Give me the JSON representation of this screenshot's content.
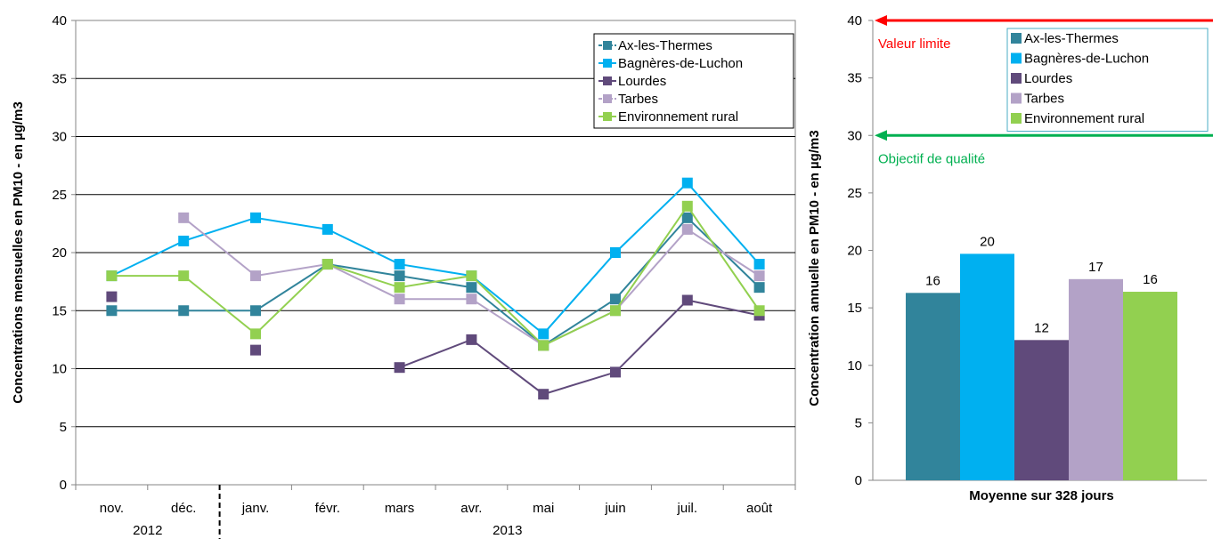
{
  "colors": {
    "ax": "#31849B",
    "luchon": "#00B0F0",
    "lourdes": "#604A7B",
    "tarbes": "#B3A2C7",
    "rural": "#92D050",
    "limit": "#FF0000",
    "objective": "#00B050",
    "legend_border": "#4BACC6"
  },
  "chart_data": [
    {
      "type": "line",
      "title": "",
      "xlabel": "",
      "ylabel": "Concentrations mensuelles en PM10 - en µg/m3",
      "ylim": [
        0,
        40
      ],
      "yticks": [
        0,
        5,
        10,
        15,
        20,
        25,
        30,
        35,
        40
      ],
      "grid": true,
      "legend": "top-right",
      "categories": [
        "nov.",
        "déc.",
        "janv.",
        "févr.",
        "mars",
        "avr.",
        "mai",
        "juin",
        "juil.",
        "août"
      ],
      "year_groups": [
        {
          "label": "2012",
          "start": 0,
          "end": 1
        },
        {
          "label": "2013",
          "start": 2,
          "end": 9
        }
      ],
      "series": [
        {
          "name": "Ax-les-Thermes",
          "color_key": "ax",
          "dashed": true,
          "values": [
            15,
            15,
            15,
            19,
            18,
            17,
            12,
            16,
            23,
            17
          ]
        },
        {
          "name": "Bagnères-de-Luchon",
          "color_key": "luchon",
          "dashed": false,
          "values": [
            18,
            21,
            23,
            22,
            19,
            18,
            13,
            20,
            26,
            19
          ]
        },
        {
          "name": "Lourdes",
          "color_key": "lourdes",
          "dashed": false,
          "values": [
            16.2,
            null,
            11.6,
            null,
            10.1,
            12.5,
            7.8,
            9.7,
            15.9,
            14.6
          ]
        },
        {
          "name": "Tarbes",
          "color_key": "tarbes",
          "dashed": true,
          "values": [
            null,
            23,
            18,
            19,
            16,
            16,
            12,
            15,
            22,
            18
          ]
        },
        {
          "name": "Environnement rural",
          "color_key": "rural",
          "dashed": false,
          "values": [
            18,
            18,
            13,
            19,
            17,
            18,
            12,
            15,
            24,
            15
          ]
        }
      ]
    },
    {
      "type": "bar",
      "title": "",
      "xlabel": "Moyenne sur 328 jours",
      "ylabel": "Concentration annuelle en PM10  - en µg/m3",
      "ylim": [
        0,
        40
      ],
      "yticks": [
        0,
        5,
        10,
        15,
        20,
        25,
        30,
        35,
        40
      ],
      "grid": false,
      "legend": "top-right",
      "categories": [
        "Ax-les-Thermes",
        "Bagnères-de-Luchon",
        "Lourdes",
        "Tarbes",
        "Environnement rural"
      ],
      "values": [
        16.3,
        19.7,
        12.2,
        17.5,
        16.4
      ],
      "data_labels": [
        "16",
        "20",
        "12",
        "17",
        "16"
      ],
      "color_keys": [
        "ax",
        "luchon",
        "lourdes",
        "tarbes",
        "rural"
      ],
      "reference_lines": [
        {
          "label": "Valeur limite",
          "value": 40,
          "color_key": "limit"
        },
        {
          "label": "Objectif de qualité",
          "value": 30,
          "color_key": "objective"
        }
      ]
    }
  ]
}
